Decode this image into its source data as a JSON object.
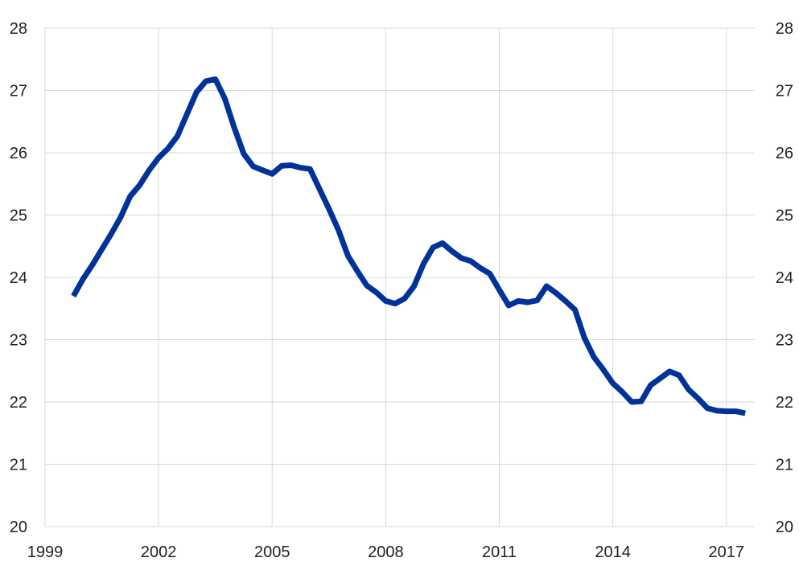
{
  "chart_data": {
    "type": "line",
    "title": "",
    "xlabel": "",
    "ylabel": "",
    "xlim": [
      1999,
      2017.75
    ],
    "ylim": [
      20,
      28
    ],
    "y_ticks": [
      20,
      21,
      22,
      23,
      24,
      25,
      26,
      27,
      28
    ],
    "y_tick_labels": [
      "20",
      "21",
      "22",
      "23",
      "24",
      "25",
      "26",
      "27",
      "28"
    ],
    "x_ticks": [
      1999,
      2002,
      2005,
      2008,
      2011,
      2014,
      2017
    ],
    "x_tick_labels": [
      "1999",
      "2002",
      "2005",
      "2008",
      "2011",
      "2014",
      "2017"
    ],
    "grid": true,
    "line_color": "#003299",
    "grid_color": "#d9d9d9",
    "axes_on": [
      "left",
      "right"
    ],
    "series": [
      {
        "x": [
          1999.75,
          2000.0,
          2000.25,
          2000.5,
          2000.75,
          2001.0,
          2001.25,
          2001.5,
          2001.75,
          2002.0,
          2002.25,
          2002.5,
          2002.75,
          2003.0,
          2003.25,
          2003.5,
          2003.75,
          2004.0,
          2004.25,
          2004.5,
          2004.75,
          2005.0,
          2005.25,
          2005.5,
          2005.75,
          2006.0,
          2006.25,
          2006.5,
          2006.75,
          2007.0,
          2007.25,
          2007.5,
          2007.75,
          2008.0,
          2008.25,
          2008.5,
          2008.75,
          2009.0,
          2009.25,
          2009.5,
          2009.75,
          2010.0,
          2010.25,
          2010.5,
          2010.75,
          2011.0,
          2011.25,
          2011.5,
          2011.75,
          2012.0,
          2012.25,
          2012.5,
          2012.75,
          2013.0,
          2013.25,
          2013.5,
          2013.75,
          2014.0,
          2014.25,
          2014.5,
          2014.75,
          2015.0,
          2015.25,
          2015.5,
          2015.75,
          2016.0,
          2016.25,
          2016.5,
          2016.75,
          2017.0,
          2017.25,
          2017.5
        ],
        "y": [
          23.7,
          23.97,
          24.2,
          24.45,
          24.7,
          24.97,
          25.3,
          25.48,
          25.72,
          25.92,
          26.07,
          26.27,
          26.62,
          26.97,
          27.15,
          27.18,
          26.87,
          26.4,
          25.98,
          25.78,
          25.72,
          25.66,
          25.79,
          25.8,
          25.76,
          25.74,
          25.42,
          25.1,
          24.76,
          24.35,
          24.1,
          23.87,
          23.76,
          23.62,
          23.58,
          23.66,
          23.86,
          24.22,
          24.48,
          24.55,
          24.42,
          24.31,
          24.26,
          24.15,
          24.06,
          23.8,
          23.55,
          23.62,
          23.6,
          23.63,
          23.86,
          23.75,
          23.62,
          23.48,
          23.03,
          22.72,
          22.52,
          22.3,
          22.16,
          22.0,
          22.01,
          22.27,
          22.38,
          22.49,
          22.43,
          22.2,
          22.06,
          21.9,
          21.86,
          21.85,
          21.85,
          21.82
        ]
      }
    ]
  }
}
